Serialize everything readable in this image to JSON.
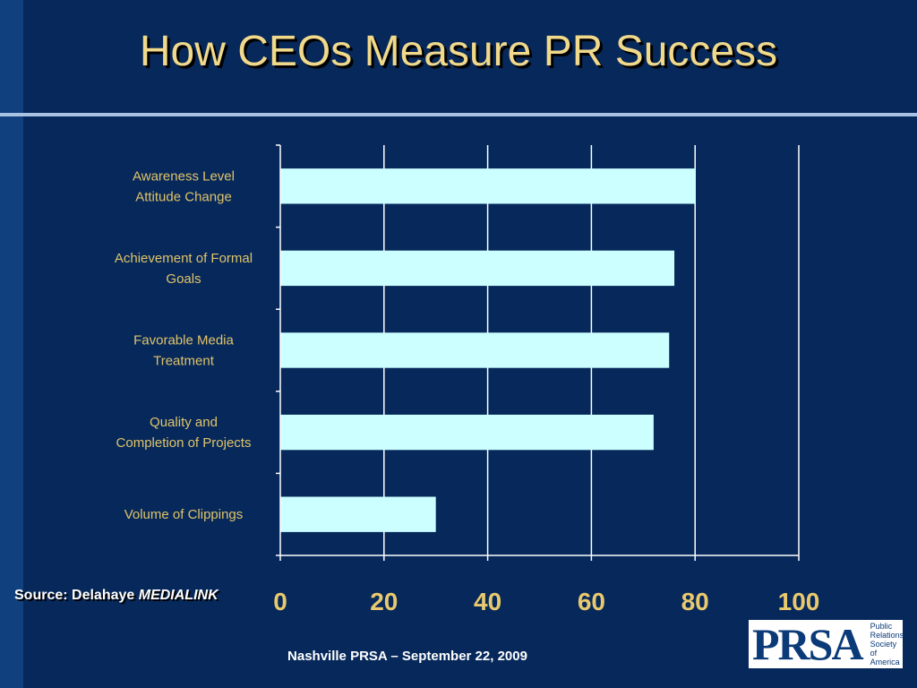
{
  "slide": {
    "title": "How CEOs Measure PR Success",
    "source_prefix": "Source:  Delahaye ",
    "source_emphasis": "MEDIALINK",
    "footer": "Nashville PRSA – September 22, 2009"
  },
  "logo": {
    "mark": "PRSA",
    "lines": [
      "Public",
      "Relations",
      "Society of",
      "America"
    ]
  },
  "colors": {
    "background": "#06285a",
    "bar": "#ccffff",
    "category_text": "#e0c46a",
    "tick_text": "#e9c96d",
    "gridline": "#ffffff"
  },
  "chart_data": {
    "type": "bar",
    "orientation": "horizontal",
    "categories": [
      [
        "Awareness Level",
        "Attitude Change"
      ],
      [
        "Achievement of Formal",
        "Goals"
      ],
      [
        "Favorable Media",
        "Treatment"
      ],
      [
        "Quality and",
        "Completion of Projects"
      ],
      [
        "Volume of Clippings"
      ]
    ],
    "values": [
      80,
      76,
      75,
      72,
      30
    ],
    "xlim": [
      0,
      100
    ],
    "xticks": [
      0,
      20,
      40,
      60,
      80,
      100
    ],
    "grid": true,
    "legend": "none"
  }
}
